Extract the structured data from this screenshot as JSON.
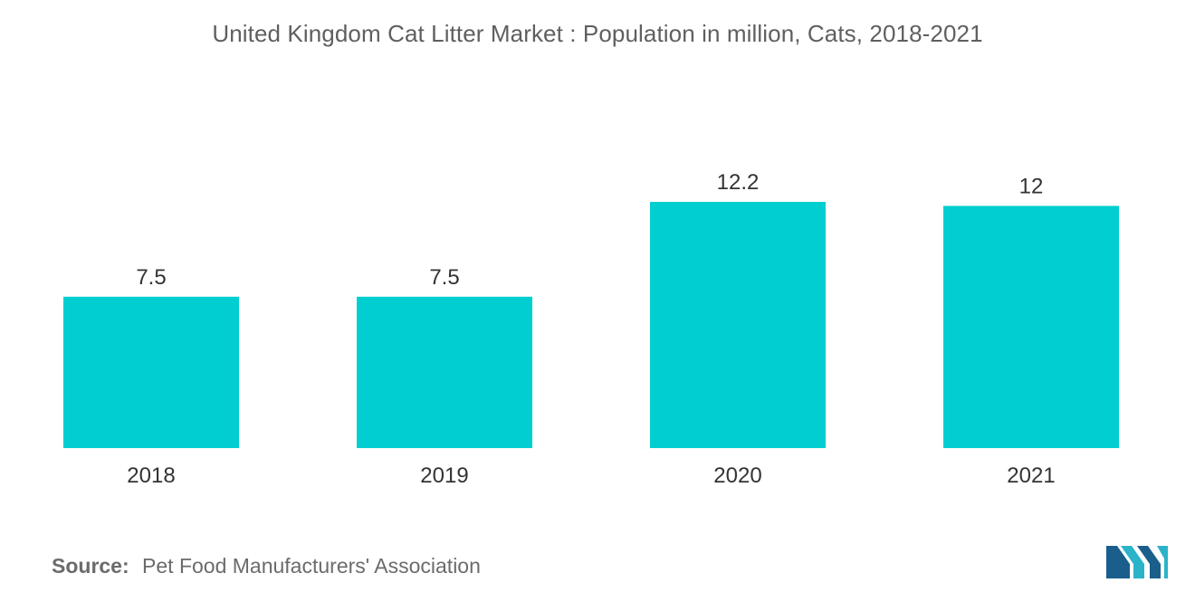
{
  "chart_data": {
    "type": "bar",
    "title": "United Kingdom Cat Litter Market : Population in million, Cats, 2018-2021",
    "categories": [
      "2018",
      "2019",
      "2020",
      "2021"
    ],
    "values": [
      7.5,
      7.5,
      12.2,
      12
    ],
    "value_labels": [
      "7.5",
      "7.5",
      "12.2",
      "12"
    ],
    "xlabel": "",
    "ylabel": "",
    "ylim": [
      0,
      12.2
    ],
    "grid": false,
    "legend": "none",
    "bar_color": "#00ced1"
  },
  "source": {
    "label": "Source:",
    "text": "Pet Food Manufacturers' Association"
  },
  "logo": {
    "icon": "mordor-intelligence-logo-icon",
    "color_dark": "#1a5e8c",
    "color_light": "#2bb3c9"
  }
}
